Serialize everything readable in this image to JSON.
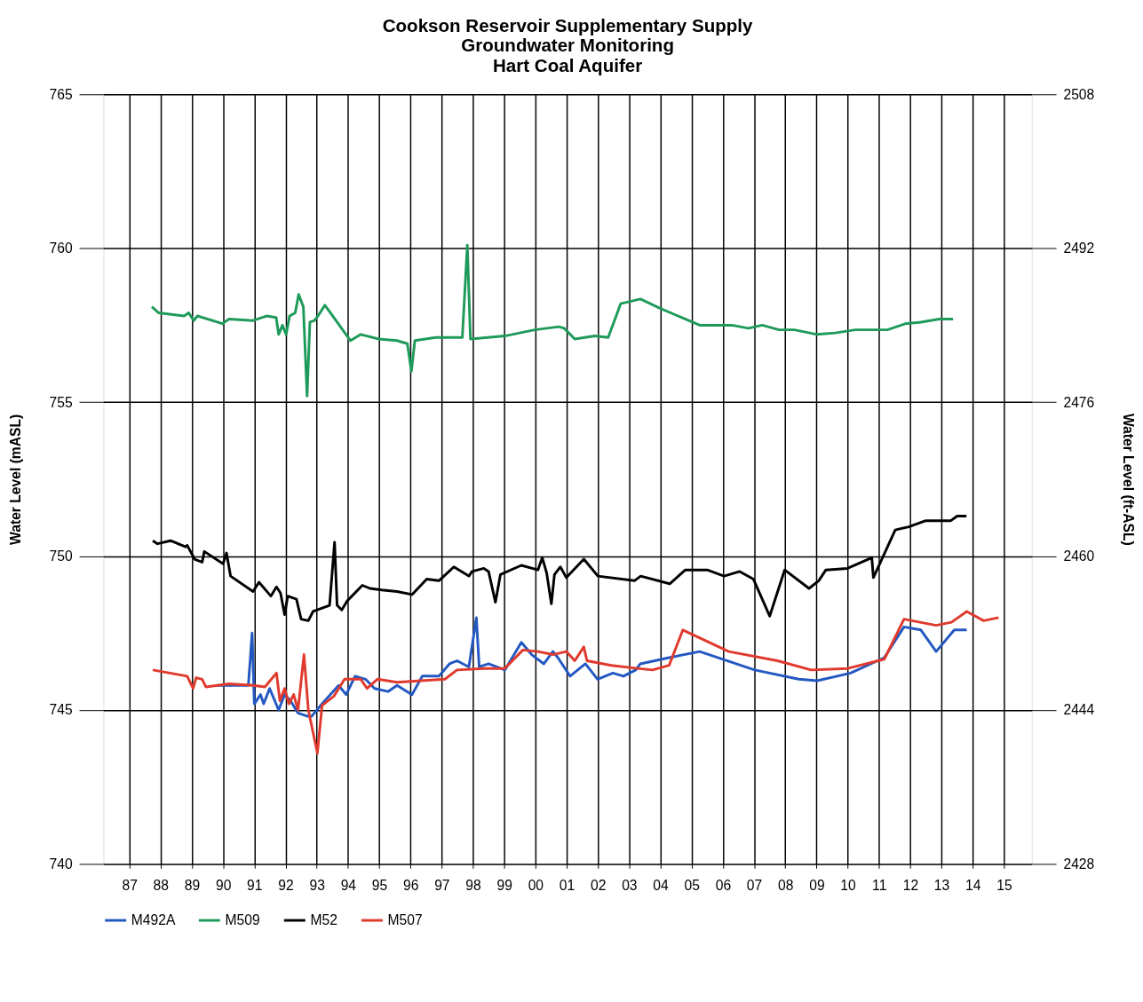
{
  "chart_data": {
    "type": "line",
    "title": "Cookson Reservoir Supplementary Supply\nGroundwater Monitoring\nHart Coal Aquifer",
    "ylabel": "Water Level (mASL)",
    "y2label": "Water Level (ft-ASL)",
    "xlim": [
      1986.17,
      2015.89
    ],
    "xticks": [
      {
        "value": 1987,
        "label": "87"
      },
      {
        "value": 1988,
        "label": "88"
      },
      {
        "value": 1989,
        "label": "89"
      },
      {
        "value": 1990,
        "label": "90"
      },
      {
        "value": 1991,
        "label": "91"
      },
      {
        "value": 1992,
        "label": "92"
      },
      {
        "value": 1993,
        "label": "93"
      },
      {
        "value": 1994,
        "label": "94"
      },
      {
        "value": 1995,
        "label": "95"
      },
      {
        "value": 1996,
        "label": "96"
      },
      {
        "value": 1997,
        "label": "97"
      },
      {
        "value": 1998,
        "label": "98"
      },
      {
        "value": 1999,
        "label": "99"
      },
      {
        "value": 2000,
        "label": "00"
      },
      {
        "value": 2001,
        "label": "01"
      },
      {
        "value": 2002,
        "label": "02"
      },
      {
        "value": 2003,
        "label": "03"
      },
      {
        "value": 2004,
        "label": "04"
      },
      {
        "value": 2005,
        "label": "05"
      },
      {
        "value": 2006,
        "label": "06"
      },
      {
        "value": 2007,
        "label": "07"
      },
      {
        "value": 2008,
        "label": "08"
      },
      {
        "value": 2009,
        "label": "09"
      },
      {
        "value": 2010,
        "label": "10"
      },
      {
        "value": 2011,
        "label": "11"
      },
      {
        "value": 2012,
        "label": "12"
      },
      {
        "value": 2013,
        "label": "13"
      },
      {
        "value": 2014,
        "label": "14"
      },
      {
        "value": 2015,
        "label": "15"
      }
    ],
    "ylim": [
      740,
      765
    ],
    "yticks": [
      740,
      745,
      750,
      755,
      760,
      765
    ],
    "y2lim": [
      2428,
      2508
    ],
    "y2ticks": [
      2428,
      2444,
      2460,
      2476,
      2492,
      2508
    ],
    "grid": true,
    "legend": "bottom",
    "line_style": "solid",
    "marker": "none",
    "series": [
      {
        "name": "M492A",
        "color": "#2358c2",
        "x": [
          1989.8,
          1990.81,
          1990.93,
          1991.0,
          1991.2,
          1991.3,
          1991.49,
          1991.78,
          1991.97,
          1992.16,
          1992.4,
          1992.69,
          1992.84,
          1993.17,
          1993.7,
          1993.94,
          1994.23,
          1994.56,
          1994.85,
          1995.28,
          1995.57,
          1996.05,
          1996.38,
          1996.91,
          1997.25,
          1997.49,
          1997.87,
          1998.11,
          1998.2,
          1998.5,
          1999.02,
          1999.55,
          1999.88,
          2000.27,
          2000.56,
          2000.72,
          2001.11,
          2001.6,
          2001.99,
          2002.48,
          2002.82,
          2003.21,
          2003.36,
          2004.28,
          2005.26,
          2007.02,
          2008.43,
          2009.02,
          2010.09,
          2011.17,
          2011.8,
          2012.34,
          2012.83,
          2013.41,
          2013.81
        ],
        "values": [
          745.8,
          745.8,
          747.5,
          745.2,
          745.5,
          745.2,
          745.7,
          745.0,
          745.5,
          745.3,
          744.9,
          744.8,
          744.8,
          745.2,
          745.8,
          745.5,
          746.1,
          746.0,
          745.7,
          745.6,
          745.8,
          745.5,
          746.1,
          746.1,
          746.5,
          746.6,
          746.4,
          748.0,
          746.4,
          746.5,
          746.3,
          747.2,
          746.8,
          746.5,
          746.9,
          746.7,
          746.1,
          746.5,
          746.0,
          746.2,
          746.1,
          746.3,
          746.5,
          746.7,
          746.9,
          746.3,
          746.0,
          745.95,
          746.2,
          746.7,
          747.7,
          747.6,
          746.9,
          747.6,
          747.6
        ]
      },
      {
        "name": "M509",
        "color": "#1e9a5a",
        "x": [
          1987.72,
          1987.94,
          1988.75,
          1988.9,
          1989.06,
          1989.18,
          1989.98,
          1990.19,
          1990.96,
          1991.39,
          1991.7,
          1991.78,
          1991.9,
          1992.02,
          1992.13,
          1992.31,
          1992.42,
          1992.57,
          1992.69,
          1992.78,
          1992.93,
          1993.07,
          1993.26,
          1993.65,
          1994.08,
          1994.41,
          1994.99,
          1995.57,
          1995.9,
          1996.03,
          1996.14,
          1996.81,
          1997.66,
          1997.82,
          1997.92,
          1999.02,
          1999.98,
          2000.75,
          2000.92,
          2001.26,
          2001.9,
          2002.33,
          2002.73,
          2003.16,
          2003.36,
          2003.99,
          2005.26,
          2006.29,
          2006.82,
          2007.26,
          2007.8,
          2008.29,
          2009.02,
          2009.6,
          2010.24,
          2011.27,
          2011.85,
          2012.34,
          2012.93,
          2013.37
        ],
        "values": [
          758.1,
          757.9,
          757.8,
          757.9,
          757.65,
          757.8,
          757.55,
          757.7,
          757.65,
          757.8,
          757.75,
          757.2,
          757.5,
          757.2,
          757.8,
          757.9,
          758.5,
          758.1,
          755.2,
          757.6,
          757.65,
          757.85,
          758.15,
          757.6,
          757.0,
          757.2,
          757.05,
          757.0,
          756.9,
          756.0,
          757.0,
          757.1,
          757.1,
          760.1,
          757.05,
          757.15,
          757.35,
          757.45,
          757.4,
          757.05,
          757.15,
          757.1,
          758.2,
          758.3,
          758.35,
          758.05,
          757.5,
          757.5,
          757.4,
          757.5,
          757.35,
          757.35,
          757.2,
          757.25,
          757.35,
          757.35,
          757.55,
          757.6,
          757.7,
          757.7
        ]
      },
      {
        "name": "M52",
        "color": "#000000",
        "x": [
          1987.75,
          1987.9,
          1988.32,
          1988.8,
          1988.85,
          1989.09,
          1989.33,
          1989.4,
          1990.0,
          1990.11,
          1990.24,
          1990.96,
          1991.15,
          1991.53,
          1991.71,
          1991.84,
          1991.97,
          1992.07,
          1992.35,
          1992.5,
          1992.73,
          1992.88,
          1993.41,
          1993.57,
          1993.65,
          1993.8,
          1993.98,
          1994.46,
          1994.7,
          1995.08,
          1995.57,
          1996.05,
          1996.52,
          1996.91,
          1997.39,
          1997.87,
          1997.97,
          1998.35,
          1998.5,
          1998.72,
          1998.88,
          1999.55,
          2000.08,
          2000.22,
          2000.36,
          2000.51,
          2000.61,
          2000.8,
          2000.99,
          2001.55,
          2002.0,
          2003.17,
          2003.37,
          2004.3,
          2004.8,
          2005.5,
          2006.04,
          2006.54,
          2006.98,
          2007.5,
          2007.98,
          2008.76,
          2009.07,
          2009.3,
          2009.99,
          2010.77,
          2010.82,
          2011.52,
          2011.95,
          2012.5,
          2013.3,
          2013.5,
          2013.8
        ],
        "values": [
          750.5,
          750.4,
          750.5,
          750.3,
          750.35,
          749.9,
          749.8,
          750.15,
          749.75,
          750.1,
          749.35,
          748.85,
          749.15,
          748.7,
          749.0,
          748.8,
          748.1,
          748.7,
          748.6,
          747.95,
          747.9,
          748.2,
          748.4,
          750.45,
          748.4,
          748.25,
          748.55,
          749.05,
          748.95,
          748.9,
          748.85,
          748.75,
          749.25,
          749.2,
          749.65,
          749.35,
          749.5,
          749.6,
          749.5,
          748.5,
          749.4,
          749.7,
          749.55,
          749.95,
          749.45,
          748.45,
          749.4,
          749.65,
          749.3,
          749.9,
          749.35,
          749.2,
          749.35,
          749.1,
          749.55,
          749.55,
          749.35,
          749.5,
          749.25,
          748.05,
          749.55,
          748.95,
          749.2,
          749.55,
          749.6,
          749.95,
          749.3,
          750.85,
          750.95,
          751.15,
          751.15,
          751.3,
          751.3
        ]
      },
      {
        "name": "M507",
        "color": "#e0392d",
        "x": [
          1987.75,
          1988.85,
          1989.04,
          1989.14,
          1989.33,
          1989.45,
          1990.19,
          1990.96,
          1991.34,
          1991.71,
          1991.82,
          1991.97,
          1992.11,
          1992.26,
          1992.4,
          1992.59,
          1992.73,
          1993.02,
          1993.17,
          1993.55,
          1993.89,
          1994.41,
          1994.61,
          1994.94,
          1995.57,
          1996.33,
          1997.1,
          1997.49,
          1998.35,
          1999.02,
          1999.6,
          2000.08,
          2000.56,
          2000.99,
          2001.26,
          2001.55,
          2001.65,
          2002.43,
          2003.26,
          2003.75,
          2004.28,
          2004.72,
          2006.19,
          2007.75,
          2008.83,
          2010.0,
          2011.17,
          2011.8,
          2012.83,
          2013.32,
          2013.81,
          2014.35,
          2014.83
        ],
        "values": [
          746.3,
          746.1,
          745.7,
          746.05,
          746.0,
          745.75,
          745.85,
          745.8,
          745.75,
          746.2,
          745.3,
          745.7,
          745.2,
          745.5,
          745.0,
          746.8,
          745.0,
          743.6,
          745.15,
          745.45,
          746.0,
          746.0,
          745.7,
          746.0,
          745.9,
          745.95,
          746.0,
          746.3,
          746.35,
          746.35,
          746.95,
          746.9,
          746.8,
          746.9,
          746.6,
          747.05,
          746.6,
          746.45,
          746.35,
          746.3,
          746.45,
          747.6,
          746.9,
          746.6,
          746.3,
          746.35,
          746.65,
          747.95,
          747.75,
          747.85,
          748.2,
          747.9,
          748.0
        ]
      }
    ]
  }
}
